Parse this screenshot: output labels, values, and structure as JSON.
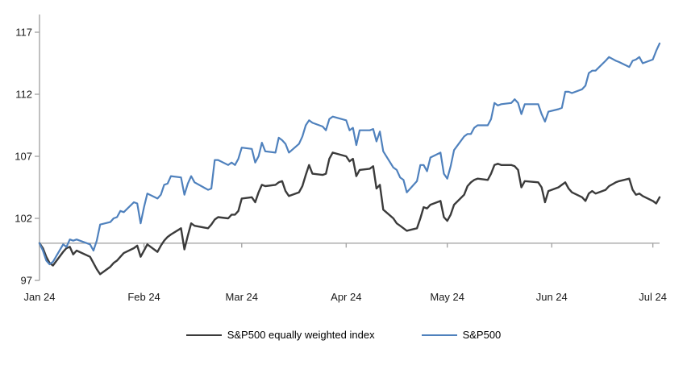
{
  "chart_data": {
    "type": "line",
    "title": "",
    "xlabel": "",
    "ylabel": "",
    "grid": false,
    "background": "#ffffff",
    "axis_color": "#a6a6a6",
    "text_color": "#1a1a1a",
    "y_axis": {
      "ticks": [
        97,
        102,
        107,
        112,
        117
      ],
      "min": 97,
      "max": 117,
      "baseline": 100
    },
    "x_axis": {
      "tick_labels": [
        "Jan 24",
        "Feb 24",
        "Mar 24",
        "Apr 24",
        "May 24",
        "Jun 24",
        "Jul 24"
      ],
      "tick_dates": [
        "2024-01-01",
        "2024-02-01",
        "2024-03-01",
        "2024-04-01",
        "2024-05-01",
        "2024-06-01",
        "2024-07-01"
      ],
      "start_date": "2024-01-01",
      "end_date": "2024-07-03"
    },
    "legend_position": "bottom-center",
    "dates": [
      "2024-01-01",
      "2024-01-02",
      "2024-01-03",
      "2024-01-04",
      "2024-01-05",
      "2024-01-08",
      "2024-01-09",
      "2024-01-10",
      "2024-01-11",
      "2024-01-12",
      "2024-01-16",
      "2024-01-17",
      "2024-01-18",
      "2024-01-19",
      "2024-01-22",
      "2024-01-23",
      "2024-01-24",
      "2024-01-25",
      "2024-01-26",
      "2024-01-29",
      "2024-01-30",
      "2024-01-31",
      "2024-02-01",
      "2024-02-02",
      "2024-02-05",
      "2024-02-06",
      "2024-02-07",
      "2024-02-08",
      "2024-02-09",
      "2024-02-12",
      "2024-02-13",
      "2024-02-14",
      "2024-02-15",
      "2024-02-16",
      "2024-02-20",
      "2024-02-21",
      "2024-02-22",
      "2024-02-23",
      "2024-02-26",
      "2024-02-27",
      "2024-02-28",
      "2024-02-29",
      "2024-03-01",
      "2024-03-04",
      "2024-03-05",
      "2024-03-06",
      "2024-03-07",
      "2024-03-08",
      "2024-03-11",
      "2024-03-12",
      "2024-03-13",
      "2024-03-14",
      "2024-03-15",
      "2024-03-18",
      "2024-03-19",
      "2024-03-20",
      "2024-03-21",
      "2024-03-22",
      "2024-03-25",
      "2024-03-26",
      "2024-03-27",
      "2024-03-28",
      "2024-04-01",
      "2024-04-02",
      "2024-04-03",
      "2024-04-04",
      "2024-04-05",
      "2024-04-08",
      "2024-04-09",
      "2024-04-10",
      "2024-04-11",
      "2024-04-12",
      "2024-04-15",
      "2024-04-16",
      "2024-04-17",
      "2024-04-18",
      "2024-04-19",
      "2024-04-22",
      "2024-04-23",
      "2024-04-24",
      "2024-04-25",
      "2024-04-26",
      "2024-04-29",
      "2024-04-30",
      "2024-05-01",
      "2024-05-02",
      "2024-05-03",
      "2024-05-06",
      "2024-05-07",
      "2024-05-08",
      "2024-05-09",
      "2024-05-10",
      "2024-05-13",
      "2024-05-14",
      "2024-05-15",
      "2024-05-16",
      "2024-05-17",
      "2024-05-20",
      "2024-05-21",
      "2024-05-22",
      "2024-05-23",
      "2024-05-24",
      "2024-05-28",
      "2024-05-29",
      "2024-05-30",
      "2024-05-31",
      "2024-06-03",
      "2024-06-04",
      "2024-06-05",
      "2024-06-06",
      "2024-06-07",
      "2024-06-10",
      "2024-06-11",
      "2024-06-12",
      "2024-06-13",
      "2024-06-14",
      "2024-06-17",
      "2024-06-18",
      "2024-06-20",
      "2024-06-21",
      "2024-06-24",
      "2024-06-25",
      "2024-06-26",
      "2024-06-27",
      "2024-06-28",
      "2024-07-01",
      "2024-07-02",
      "2024-07-03"
    ],
    "series": [
      {
        "name": "S&P500 equally weighted index",
        "color": "#3b3b3b",
        "stroke_width": 2.4,
        "values": [
          100,
          99.6,
          98.9,
          98.4,
          98.2,
          99.3,
          99.6,
          99.7,
          99.1,
          99.4,
          98.9,
          98.4,
          97.9,
          97.5,
          98.1,
          98.4,
          98.6,
          98.9,
          99.2,
          99.6,
          99.8,
          98.9,
          99.4,
          99.9,
          99.3,
          99.8,
          100.2,
          100.5,
          100.7,
          101.2,
          99.5,
          100.6,
          101.6,
          101.4,
          101.2,
          101.5,
          101.9,
          102.1,
          102.0,
          102.3,
          102.3,
          102.6,
          103.6,
          103.7,
          103.3,
          104.1,
          104.7,
          104.6,
          104.7,
          104.9,
          105.0,
          104.2,
          103.8,
          104.1,
          104.6,
          105.5,
          106.3,
          105.6,
          105.5,
          105.6,
          106.8,
          107.3,
          107.0,
          106.6,
          106.8,
          105.4,
          105.9,
          106.0,
          106.2,
          104.4,
          104.7,
          102.7,
          102.0,
          101.6,
          101.4,
          101.2,
          101.0,
          101.2,
          102.0,
          102.9,
          102.8,
          103.1,
          103.4,
          102.1,
          101.8,
          102.3,
          103.1,
          103.9,
          104.6,
          104.9,
          105.1,
          105.2,
          105.1,
          105.6,
          106.3,
          106.4,
          106.3,
          106.3,
          106.2,
          105.9,
          104.5,
          105.0,
          104.9,
          104.5,
          103.3,
          104.2,
          104.5,
          104.7,
          104.9,
          104.4,
          104.1,
          103.7,
          103.4,
          104.0,
          104.2,
          104.0,
          104.3,
          104.6,
          104.9,
          105.0,
          105.2,
          104.3,
          103.9,
          104.0,
          103.8,
          103.4,
          103.2,
          103.7
        ]
      },
      {
        "name": "S&P500",
        "color": "#4f81bd",
        "stroke_width": 2.2,
        "values": [
          100,
          99.4,
          98.6,
          98.3,
          98.5,
          99.9,
          99.7,
          100.3,
          100.2,
          100.3,
          99.9,
          99.4,
          100.2,
          101.5,
          101.7,
          102.0,
          102.1,
          102.6,
          102.5,
          103.3,
          103.2,
          101.6,
          102.9,
          104.0,
          103.6,
          103.9,
          104.7,
          104.8,
          105.4,
          105.3,
          103.9,
          104.8,
          105.4,
          104.9,
          104.3,
          104.4,
          106.7,
          106.7,
          106.3,
          106.5,
          106.3,
          106.8,
          107.7,
          107.6,
          106.5,
          107.0,
          108.1,
          107.4,
          107.3,
          108.5,
          108.3,
          108.0,
          107.3,
          108.0,
          108.6,
          109.5,
          109.9,
          109.7,
          109.4,
          109.1,
          110.0,
          110.2,
          109.9,
          109.1,
          109.3,
          107.9,
          109.1,
          109.1,
          109.2,
          108.2,
          109.0,
          107.4,
          106.1,
          105.9,
          105.3,
          105.1,
          104.1,
          105.0,
          106.3,
          106.3,
          105.8,
          106.9,
          107.3,
          105.6,
          105.2,
          106.2,
          107.5,
          108.6,
          108.8,
          108.8,
          109.3,
          109.5,
          109.5,
          110.0,
          111.3,
          111.1,
          111.2,
          111.3,
          111.6,
          111.3,
          110.4,
          111.2,
          111.2,
          110.4,
          109.8,
          110.6,
          110.8,
          110.9,
          112.2,
          112.2,
          112.1,
          112.4,
          112.7,
          113.7,
          113.9,
          113.9,
          114.7,
          115.0,
          114.7,
          114.6,
          114.2,
          114.7,
          114.8,
          115.0,
          114.5,
          114.8,
          115.5,
          116.1
        ]
      }
    ]
  }
}
